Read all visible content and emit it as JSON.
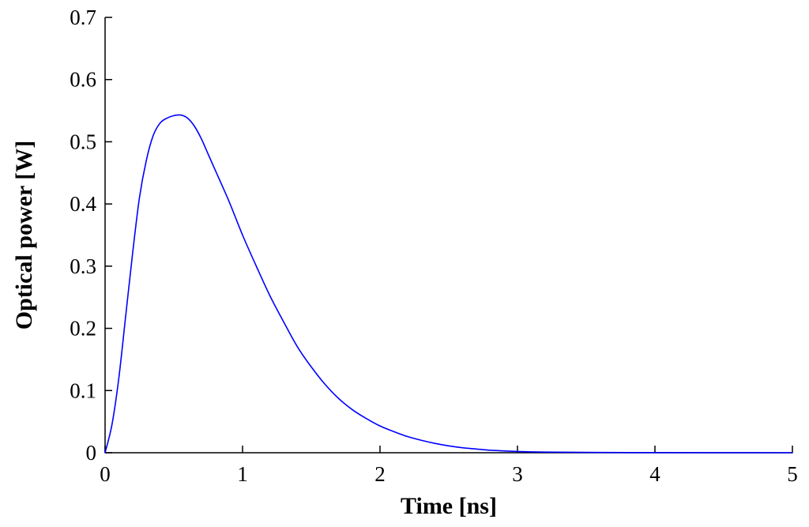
{
  "chart_data": {
    "type": "line",
    "title": "",
    "xlabel": "Time [ns]",
    "ylabel": "Optical power [W]",
    "xlim": [
      0,
      5
    ],
    "ylim": [
      0,
      0.7
    ],
    "xticks": [
      0,
      1,
      2,
      3,
      4,
      5
    ],
    "xtick_labels": [
      "0",
      "1",
      "2",
      "3",
      "4",
      "5"
    ],
    "yticks": [
      0,
      0.1,
      0.2,
      0.3,
      0.4,
      0.5,
      0.6,
      0.7
    ],
    "ytick_labels": [
      "0",
      "0.1",
      "0.2",
      "0.3",
      "0.4",
      "0.5",
      "0.6",
      "0.7"
    ],
    "grid": false,
    "legend": "none",
    "colors": {
      "series": "#0000ff",
      "axes": "#000000",
      "background": "#ffffff"
    },
    "series": [
      {
        "x": [
          0,
          0.05,
          0.1,
          0.15,
          0.2,
          0.25,
          0.3,
          0.35,
          0.4,
          0.45,
          0.5,
          0.55,
          0.6,
          0.65,
          0.7,
          0.75,
          0.8,
          0.9,
          1.0,
          1.1,
          1.2,
          1.3,
          1.4,
          1.5,
          1.6,
          1.7,
          1.8,
          1.9,
          2.0,
          2.1,
          2.2,
          2.3,
          2.4,
          2.5,
          2.6,
          2.7,
          2.8,
          2.9,
          3.0,
          3.2,
          3.5,
          4.0,
          4.5,
          5.0
        ],
        "values": [
          0,
          0.045,
          0.12,
          0.22,
          0.32,
          0.41,
          0.47,
          0.51,
          0.53,
          0.538,
          0.542,
          0.543,
          0.538,
          0.525,
          0.505,
          0.48,
          0.455,
          0.405,
          0.35,
          0.3,
          0.252,
          0.21,
          0.17,
          0.138,
          0.11,
          0.087,
          0.069,
          0.055,
          0.043,
          0.034,
          0.026,
          0.02,
          0.015,
          0.011,
          0.008,
          0.006,
          0.004,
          0.003,
          0.002,
          0.001,
          0.0005,
          0.0002,
          0.0001,
          0
        ]
      }
    ]
  }
}
